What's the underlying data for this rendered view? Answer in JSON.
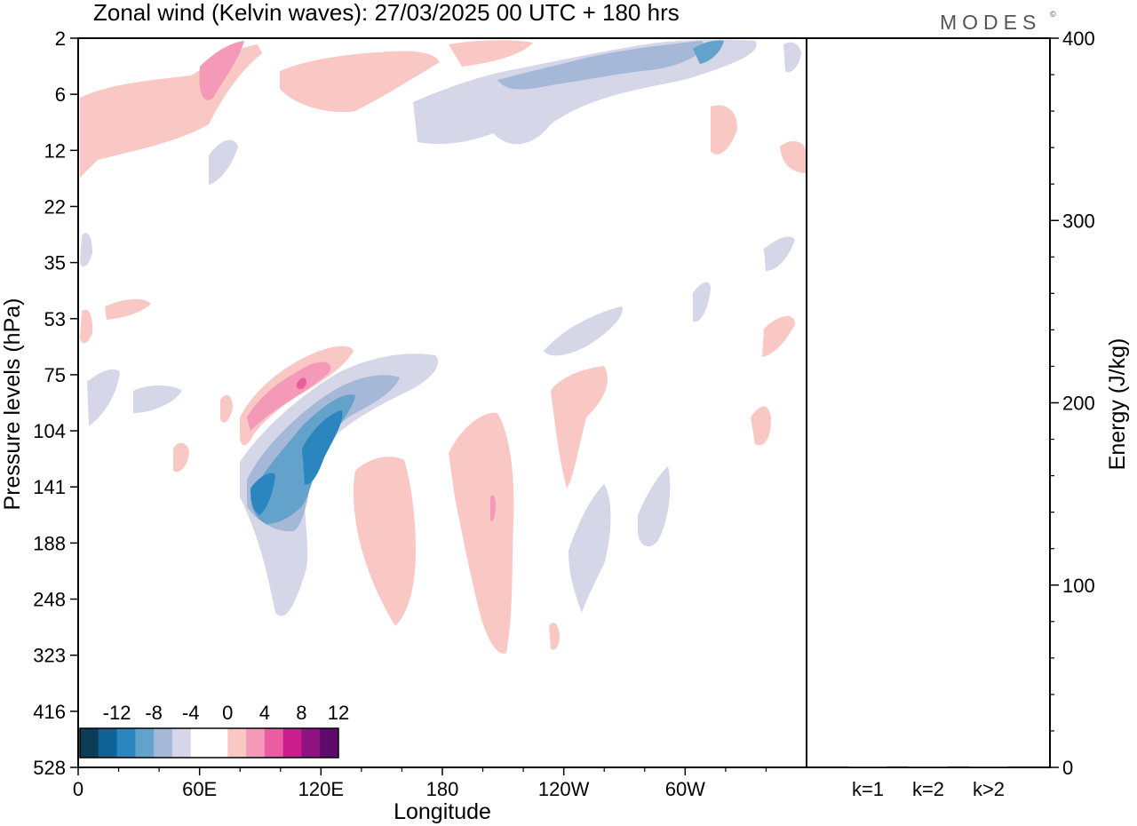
{
  "chart_data": [
    {
      "type": "heatmap",
      "title": "Zonal wind (Kelvin waves):  27/03/2025  00 UTC  + 180 hrs",
      "xlabel": "Longitude",
      "ylabel": "Pressure levels (hPa)",
      "x_ticks": [
        "0",
        "60E",
        "120E",
        "180",
        "120W",
        "60W"
      ],
      "x_tick_degrees": [
        0,
        60,
        120,
        180,
        240,
        300
      ],
      "xlim": [
        0,
        360
      ],
      "y_ticks": [
        "2",
        "6",
        "12",
        "22",
        "35",
        "53",
        "75",
        "104",
        "141",
        "188",
        "248",
        "323",
        "416",
        "528"
      ],
      "y_scale": "levels (top = 2 hPa, bottom = 528 hPa)",
      "colorbar": {
        "labels": [
          "-12",
          "-8",
          "-4",
          "0",
          "4",
          "8",
          "12"
        ],
        "colors": [
          "#0d3d56",
          "#0f6396",
          "#2b86bf",
          "#63a2cb",
          "#a6b8d8",
          "#d5d7e8",
          "#ffffff",
          "#ffffff",
          "#f9c7c4",
          "#f499b7",
          "#ea5da0",
          "#cb1e8c",
          "#8f1281",
          "#5e0a6c"
        ]
      },
      "features": [
        {
          "label": "negative (blue) tilted band",
          "lon_range": [
            80,
            180
          ],
          "level_range": [
            75,
            248
          ],
          "peak": -12
        },
        {
          "label": "positive (pink) band",
          "lon_range": [
            80,
            135
          ],
          "level_range": [
            75,
            104
          ],
          "peak": 12
        },
        {
          "label": "positive band",
          "lon_range": [
            140,
            165
          ],
          "level_range": [
            104,
            248
          ],
          "peak": 4
        },
        {
          "label": "positive band",
          "lon_range": [
            180,
            215
          ],
          "level_range": [
            104,
            323
          ],
          "peak": 8
        },
        {
          "label": "upper-level easterlies",
          "lon_range": [
            160,
            360
          ],
          "level_range": [
            2,
            12
          ],
          "peak": -8
        },
        {
          "label": "upper-level westerlies",
          "lon_range": [
            0,
            100
          ],
          "level_range": [
            2,
            12
          ],
          "peak": 8
        }
      ]
    },
    {
      "type": "bar",
      "ylabel": "Energy (J/kg)",
      "categories": [
        "k=1",
        "k=2",
        "k>2"
      ],
      "values": [
        0,
        0,
        0
      ],
      "ylim": [
        0,
        400
      ],
      "y_ticks": [
        "0",
        "100",
        "200",
        "300",
        "400"
      ]
    }
  ],
  "branding": {
    "logo_text": "MODES"
  }
}
